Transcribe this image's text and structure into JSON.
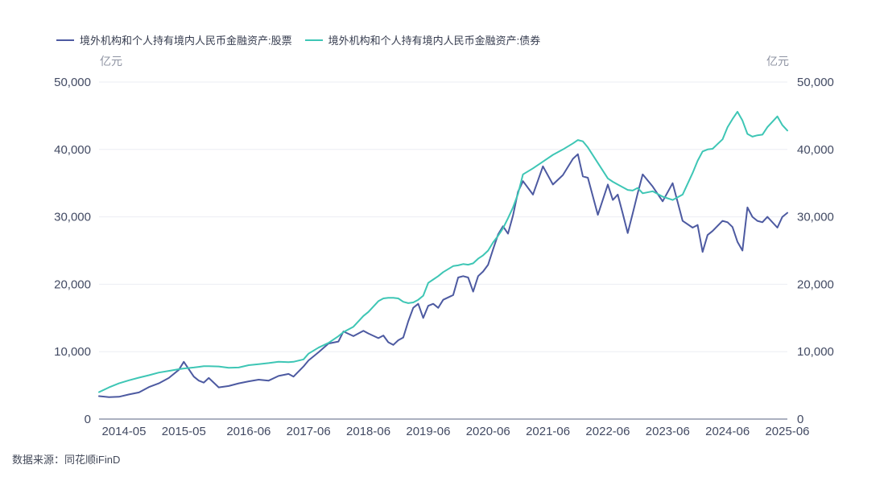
{
  "legend": {
    "items": [
      {
        "label": "境外机构和个人持有境内人民币金融资产:股票",
        "color": "#4d5aa1"
      },
      {
        "label": "境外机构和个人持有境内人民币金融资产:债券",
        "color": "#3ec6b5"
      }
    ]
  },
  "y_axis": {
    "unit_left": "亿元",
    "unit_right": "亿元",
    "ticks": [
      0,
      10000,
      20000,
      30000,
      40000,
      50000
    ]
  },
  "x_axis": {
    "ticks": [
      "2014-05",
      "2015-05",
      "2016-06",
      "2017-06",
      "2018-06",
      "2019-06",
      "2020-06",
      "2021-06",
      "2022-06",
      "2023-06",
      "2024-06",
      "2025-06"
    ]
  },
  "source": "数据来源：同花顺iFinD",
  "chart_data": {
    "type": "line",
    "unit": "亿元",
    "ylim": [
      0,
      50000
    ],
    "grid": true,
    "legend_position": "top",
    "x": [
      "2013-12",
      "2014-02",
      "2014-04",
      "2014-06",
      "2014-08",
      "2014-10",
      "2014-12",
      "2015-02",
      "2015-04",
      "2015-05",
      "2015-07",
      "2015-08",
      "2015-09",
      "2015-10",
      "2015-12",
      "2016-02",
      "2016-04",
      "2016-06",
      "2016-08",
      "2016-10",
      "2016-12",
      "2017-02",
      "2017-03",
      "2017-05",
      "2017-06",
      "2017-08",
      "2017-10",
      "2017-12",
      "2018-01",
      "2018-03",
      "2018-05",
      "2018-06",
      "2018-08",
      "2018-09",
      "2018-10",
      "2018-11",
      "2018-12",
      "2019-01",
      "2019-02",
      "2019-03",
      "2019-04",
      "2019-05",
      "2019-06",
      "2019-07",
      "2019-08",
      "2019-09",
      "2019-11",
      "2019-12",
      "2020-01",
      "2020-02",
      "2020-03",
      "2020-04",
      "2020-05",
      "2020-06",
      "2020-07",
      "2020-08",
      "2020-09",
      "2020-10",
      "2020-11",
      "2020-12",
      "2021-01",
      "2021-03",
      "2021-05",
      "2021-07",
      "2021-09",
      "2021-11",
      "2021-12",
      "2022-01",
      "2022-02",
      "2022-04",
      "2022-06",
      "2022-07",
      "2022-08",
      "2022-09",
      "2022-10",
      "2022-11",
      "2022-12",
      "2023-01",
      "2023-03",
      "2023-05",
      "2023-07",
      "2023-09",
      "2023-11",
      "2023-12",
      "2024-01",
      "2024-02",
      "2024-03",
      "2024-05",
      "2024-06",
      "2024-07",
      "2024-08",
      "2024-09",
      "2024-10",
      "2024-11",
      "2024-12",
      "2025-01",
      "2025-02",
      "2025-04",
      "2025-05",
      "2025-06"
    ],
    "series": [
      {
        "name": "境外机构和个人持有境内人民币金融资产:股票",
        "color": "#4d5aa1",
        "values": [
          3400,
          3250,
          3300,
          3650,
          3950,
          4750,
          5300,
          6100,
          7300,
          8500,
          6300,
          5700,
          5400,
          6100,
          4700,
          4900,
          5300,
          5600,
          5850,
          5700,
          6400,
          6700,
          6300,
          7800,
          8700,
          9900,
          11200,
          11500,
          13000,
          12300,
          13100,
          12700,
          12000,
          12400,
          11400,
          11000,
          11700,
          12100,
          14500,
          16500,
          17100,
          15000,
          16800,
          17100,
          16500,
          17700,
          18400,
          21000,
          21200,
          21000,
          18900,
          21200,
          21900,
          22900,
          25200,
          27400,
          28600,
          27500,
          30200,
          33700,
          35300,
          33300,
          37500,
          34800,
          36200,
          38600,
          39300,
          36000,
          35800,
          30300,
          34800,
          32500,
          33300,
          30500,
          27600,
          30500,
          33500,
          36300,
          34500,
          32300,
          35000,
          29400,
          28400,
          28800,
          24800,
          27300,
          27900,
          29400,
          29200,
          28500,
          26300,
          25000,
          31400,
          30000,
          29400,
          29200,
          30000,
          28400,
          30000,
          30600
        ]
      },
      {
        "name": "境外机构和个人持有境内人民币金融资产:债券",
        "color": "#3ec6b5",
        "values": [
          4000,
          4700,
          5300,
          5750,
          6150,
          6500,
          6900,
          7150,
          7400,
          7500,
          7650,
          7750,
          7850,
          7850,
          7800,
          7600,
          7650,
          8000,
          8150,
          8300,
          8500,
          8450,
          8500,
          8850,
          9700,
          10600,
          11300,
          12300,
          12900,
          13700,
          15300,
          15900,
          17500,
          17900,
          18000,
          18000,
          17900,
          17400,
          17200,
          17300,
          17700,
          18300,
          20200,
          20700,
          21200,
          21800,
          22700,
          22800,
          23000,
          22900,
          23100,
          23800,
          24300,
          25000,
          26200,
          27200,
          28300,
          29800,
          31400,
          33400,
          36300,
          37200,
          38200,
          39200,
          40000,
          40900,
          41400,
          41200,
          40300,
          38000,
          35700,
          35200,
          34800,
          34400,
          34000,
          33900,
          34300,
          33500,
          33800,
          33000,
          32500,
          33300,
          36500,
          38300,
          39700,
          40000,
          40100,
          41500,
          43300,
          44500,
          45600,
          44300,
          42300,
          41900,
          42100,
          42200,
          43300,
          44900,
          43600,
          42800
        ]
      }
    ]
  }
}
